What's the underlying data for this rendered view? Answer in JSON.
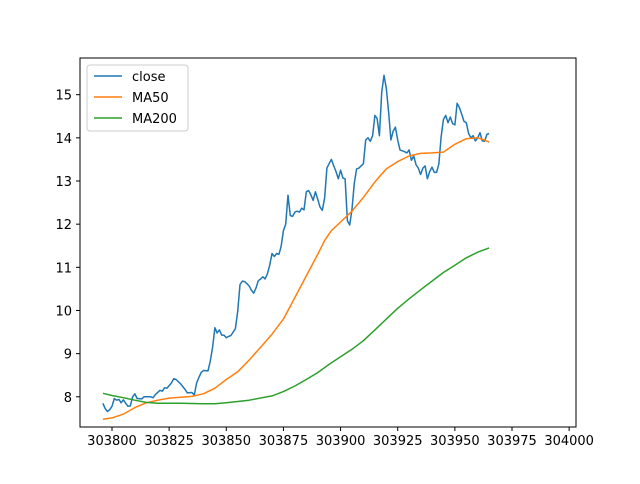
{
  "chart_data": {
    "type": "line",
    "title": "",
    "xlabel": "",
    "ylabel": "",
    "xlim": [
      303786,
      304003
    ],
    "ylim": [
      7.3,
      15.85
    ],
    "x_ticks": [
      303800,
      303825,
      303850,
      303875,
      303900,
      303925,
      303950,
      303975,
      304000
    ],
    "y_ticks": [
      8,
      9,
      10,
      11,
      12,
      13,
      14,
      15
    ],
    "grid": false,
    "legend_position": "upper-left",
    "series": [
      {
        "name": "close",
        "color": "#1f77b4",
        "points": [
          [
            303796,
            7.85
          ],
          [
            303797,
            7.73
          ],
          [
            303798,
            7.66
          ],
          [
            303799,
            7.7
          ],
          [
            303800,
            7.78
          ],
          [
            303801,
            7.96
          ],
          [
            303802,
            7.92
          ],
          [
            303803,
            7.94
          ],
          [
            303804,
            7.86
          ],
          [
            303805,
            7.93
          ],
          [
            303806,
            7.85
          ],
          [
            303807,
            7.78
          ],
          [
            303808,
            7.79
          ],
          [
            303809,
            8.0
          ],
          [
            303810,
            8.07
          ],
          [
            303811,
            7.96
          ],
          [
            303813,
            7.95
          ],
          [
            303814,
            8.0
          ],
          [
            303816,
            8.0
          ],
          [
            303817,
            8.0
          ],
          [
            303818,
            7.98
          ],
          [
            303819,
            8.05
          ],
          [
            303821,
            8.15
          ],
          [
            303822,
            8.13
          ],
          [
            303823,
            8.21
          ],
          [
            303824,
            8.2
          ],
          [
            303826,
            8.32
          ],
          [
            303827,
            8.42
          ],
          [
            303828,
            8.4
          ],
          [
            303830,
            8.3
          ],
          [
            303832,
            8.17
          ],
          [
            303833,
            8.09
          ],
          [
            303835,
            8.1
          ],
          [
            303836,
            8.04
          ],
          [
            303837,
            8.32
          ],
          [
            303838,
            8.45
          ],
          [
            303839,
            8.56
          ],
          [
            303840,
            8.61
          ],
          [
            303842,
            8.6
          ],
          [
            303843,
            8.83
          ],
          [
            303844,
            9.15
          ],
          [
            303845,
            9.6
          ],
          [
            303846,
            9.48
          ],
          [
            303847,
            9.55
          ],
          [
            303848,
            9.43
          ],
          [
            303849,
            9.43
          ],
          [
            303850,
            9.37
          ],
          [
            303851,
            9.4
          ],
          [
            303852,
            9.42
          ],
          [
            303853,
            9.5
          ],
          [
            303854,
            9.58
          ],
          [
            303855,
            9.98
          ],
          [
            303856,
            10.6
          ],
          [
            303857,
            10.68
          ],
          [
            303858,
            10.67
          ],
          [
            303859,
            10.62
          ],
          [
            303860,
            10.57
          ],
          [
            303861,
            10.47
          ],
          [
            303862,
            10.4
          ],
          [
            303863,
            10.52
          ],
          [
            303864,
            10.69
          ],
          [
            303865,
            10.73
          ],
          [
            303866,
            10.78
          ],
          [
            303867,
            10.73
          ],
          [
            303868,
            10.85
          ],
          [
            303869,
            11.05
          ],
          [
            303870,
            11.32
          ],
          [
            303871,
            11.25
          ],
          [
            303872,
            11.32
          ],
          [
            303873,
            11.3
          ],
          [
            303874,
            11.48
          ],
          [
            303875,
            11.85
          ],
          [
            303876,
            12.0
          ],
          [
            303877,
            12.67
          ],
          [
            303878,
            12.2
          ],
          [
            303879,
            12.18
          ],
          [
            303880,
            12.28
          ],
          [
            303881,
            12.3
          ],
          [
            303882,
            12.28
          ],
          [
            303883,
            12.37
          ],
          [
            303884,
            12.33
          ],
          [
            303885,
            12.75
          ],
          [
            303886,
            12.78
          ],
          [
            303887,
            12.68
          ],
          [
            303888,
            12.55
          ],
          [
            303889,
            12.75
          ],
          [
            303890,
            12.58
          ],
          [
            303891,
            12.4
          ],
          [
            303892,
            12.32
          ],
          [
            303893,
            12.6
          ],
          [
            303894,
            13.3
          ],
          [
            303895,
            13.4
          ],
          [
            303896,
            13.5
          ],
          [
            303897,
            13.35
          ],
          [
            303898,
            13.22
          ],
          [
            303899,
            13.05
          ],
          [
            303900,
            13.25
          ],
          [
            303901,
            13.07
          ],
          [
            303902,
            13.05
          ],
          [
            303903,
            12.08
          ],
          [
            303904,
            11.98
          ],
          [
            303905,
            12.35
          ],
          [
            303906,
            12.95
          ],
          [
            303907,
            13.28
          ],
          [
            303908,
            13.3
          ],
          [
            303909,
            13.35
          ],
          [
            303910,
            13.4
          ],
          [
            303911,
            13.95
          ],
          [
            303912,
            14.0
          ],
          [
            303913,
            13.92
          ],
          [
            303914,
            14.05
          ],
          [
            303915,
            14.52
          ],
          [
            303916,
            14.45
          ],
          [
            303917,
            14.05
          ],
          [
            303918,
            15.05
          ],
          [
            303919,
            15.45
          ],
          [
            303920,
            15.15
          ],
          [
            303921,
            14.6
          ],
          [
            303922,
            13.95
          ],
          [
            303923,
            14.15
          ],
          [
            303924,
            14.25
          ],
          [
            303925,
            13.95
          ],
          [
            303926,
            13.72
          ],
          [
            303927,
            13.7
          ],
          [
            303928,
            13.68
          ],
          [
            303929,
            13.65
          ],
          [
            303930,
            13.72
          ],
          [
            303931,
            13.48
          ],
          [
            303932,
            13.58
          ],
          [
            303933,
            13.38
          ],
          [
            303934,
            13.3
          ],
          [
            303935,
            13.15
          ],
          [
            303936,
            13.3
          ],
          [
            303937,
            13.35
          ],
          [
            303938,
            13.05
          ],
          [
            303939,
            13.22
          ],
          [
            303940,
            13.32
          ],
          [
            303941,
            13.2
          ],
          [
            303942,
            13.2
          ],
          [
            303943,
            13.4
          ],
          [
            303944,
            14.02
          ],
          [
            303945,
            14.42
          ],
          [
            303946,
            14.52
          ],
          [
            303947,
            14.35
          ],
          [
            303948,
            14.48
          ],
          [
            303949,
            14.33
          ],
          [
            303950,
            14.3
          ],
          [
            303951,
            14.8
          ],
          [
            303952,
            14.7
          ],
          [
            303953,
            14.55
          ],
          [
            303954,
            14.38
          ],
          [
            303955,
            14.35
          ],
          [
            303956,
            14.1
          ],
          [
            303957,
            14.0
          ],
          [
            303958,
            14.05
          ],
          [
            303959,
            13.93
          ],
          [
            303960,
            14.0
          ],
          [
            303961,
            14.12
          ],
          [
            303962,
            13.93
          ],
          [
            303963,
            13.92
          ],
          [
            303964,
            14.08
          ],
          [
            303965,
            14.1
          ]
        ]
      },
      {
        "name": "MA50",
        "color": "#ff7f0e",
        "points": [
          [
            303796,
            7.48
          ],
          [
            303800,
            7.51
          ],
          [
            303805,
            7.6
          ],
          [
            303810,
            7.75
          ],
          [
            303815,
            7.86
          ],
          [
            303820,
            7.92
          ],
          [
            303825,
            7.97
          ],
          [
            303830,
            7.99
          ],
          [
            303835,
            8.01
          ],
          [
            303840,
            8.07
          ],
          [
            303845,
            8.2
          ],
          [
            303850,
            8.4
          ],
          [
            303855,
            8.58
          ],
          [
            303860,
            8.85
          ],
          [
            303865,
            9.15
          ],
          [
            303870,
            9.45
          ],
          [
            303875,
            9.8
          ],
          [
            303880,
            10.3
          ],
          [
            303885,
            10.8
          ],
          [
            303890,
            11.3
          ],
          [
            303893,
            11.62
          ],
          [
            303896,
            11.85
          ],
          [
            303900,
            12.05
          ],
          [
            303905,
            12.3
          ],
          [
            303910,
            12.62
          ],
          [
            303915,
            12.98
          ],
          [
            303920,
            13.28
          ],
          [
            303925,
            13.45
          ],
          [
            303930,
            13.58
          ],
          [
            303935,
            13.64
          ],
          [
            303940,
            13.65
          ],
          [
            303945,
            13.67
          ],
          [
            303950,
            13.85
          ],
          [
            303955,
            13.98
          ],
          [
            303960,
            14.0
          ],
          [
            303963,
            13.95
          ],
          [
            303965,
            13.9
          ]
        ]
      },
      {
        "name": "MA200",
        "color": "#2ca02c",
        "points": [
          [
            303796,
            8.08
          ],
          [
            303800,
            8.03
          ],
          [
            303805,
            7.98
          ],
          [
            303810,
            7.92
          ],
          [
            303815,
            7.87
          ],
          [
            303820,
            7.85
          ],
          [
            303830,
            7.85
          ],
          [
            303840,
            7.84
          ],
          [
            303845,
            7.84
          ],
          [
            303850,
            7.86
          ],
          [
            303860,
            7.92
          ],
          [
            303870,
            8.02
          ],
          [
            303875,
            8.12
          ],
          [
            303880,
            8.25
          ],
          [
            303885,
            8.4
          ],
          [
            303890,
            8.56
          ],
          [
            303895,
            8.75
          ],
          [
            303900,
            8.93
          ],
          [
            303905,
            9.1
          ],
          [
            303910,
            9.3
          ],
          [
            303915,
            9.55
          ],
          [
            303920,
            9.8
          ],
          [
            303925,
            10.05
          ],
          [
            303930,
            10.27
          ],
          [
            303935,
            10.48
          ],
          [
            303940,
            10.68
          ],
          [
            303945,
            10.88
          ],
          [
            303950,
            11.05
          ],
          [
            303955,
            11.22
          ],
          [
            303960,
            11.35
          ],
          [
            303965,
            11.45
          ]
        ]
      }
    ]
  }
}
